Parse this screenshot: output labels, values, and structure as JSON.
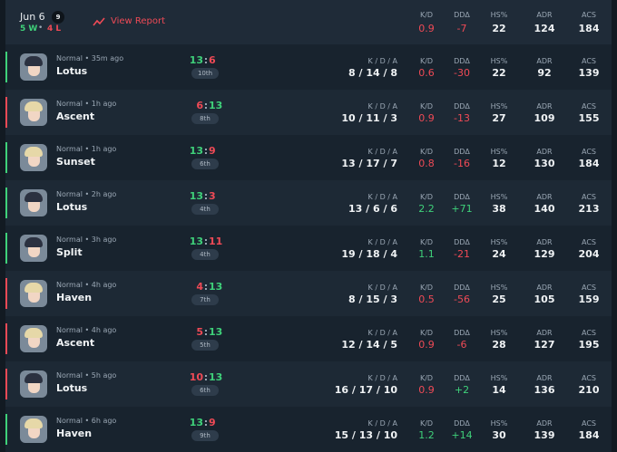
{
  "header": {
    "date": "Jun 6",
    "count": "9",
    "wins": "5 W",
    "losses": "4 L",
    "report": "View Report",
    "stats": {
      "kd": "0.9",
      "dd": "-7",
      "hs": "22",
      "adr": "124",
      "acs": "184"
    }
  },
  "labels": {
    "kda": "K / D / A",
    "kd": "K/D",
    "dd": "DDΔ",
    "hs": "HS%",
    "adr": "ADR",
    "acs": "ACS"
  },
  "matches": [
    {
      "map": "Lotus",
      "mode": "Normal • 35m ago",
      "score": [
        "13",
        "6"
      ],
      "place": "10th",
      "kda": "8 / 14 / 8",
      "kd": "0.6",
      "dd": "-30",
      "hs": "22",
      "adr": "92",
      "acs": "139",
      "avatar_color": "#2b3140"
    },
    {
      "map": "Ascent",
      "mode": "Normal • 1h ago",
      "score": [
        "6",
        "13"
      ],
      "place": "8th",
      "kda": "10 / 11 / 3",
      "kd": "0.9",
      "dd": "-13",
      "hs": "27",
      "adr": "109",
      "acs": "155",
      "avatar_color": "#e6d8a8"
    },
    {
      "map": "Sunset",
      "mode": "Normal • 1h ago",
      "score": [
        "13",
        "9"
      ],
      "place": "6th",
      "kda": "13 / 17 / 7",
      "kd": "0.8",
      "dd": "-16",
      "hs": "12",
      "adr": "130",
      "acs": "184",
      "avatar_color": "#e6d8a8"
    },
    {
      "map": "Lotus",
      "mode": "Normal • 2h ago",
      "score": [
        "13",
        "3"
      ],
      "place": "4th",
      "kda": "13 / 6 / 6",
      "kd": "2.2",
      "dd": "+71",
      "hs": "38",
      "adr": "140",
      "acs": "213",
      "avatar_color": "#2b3140"
    },
    {
      "map": "Split",
      "mode": "Normal • 3h ago",
      "score": [
        "13",
        "11"
      ],
      "place": "4th",
      "kda": "19 / 18 / 4",
      "kd": "1.1",
      "dd": "-21",
      "hs": "24",
      "adr": "129",
      "acs": "204",
      "avatar_color": "#2b3140"
    },
    {
      "map": "Haven",
      "mode": "Normal • 4h ago",
      "score": [
        "4",
        "13"
      ],
      "place": "7th",
      "kda": "8 / 15 / 3",
      "kd": "0.5",
      "dd": "-56",
      "hs": "25",
      "adr": "105",
      "acs": "159",
      "avatar_color": "#e6d8a8"
    },
    {
      "map": "Ascent",
      "mode": "Normal • 4h ago",
      "score": [
        "5",
        "13"
      ],
      "place": "5th",
      "kda": "12 / 14 / 5",
      "kd": "0.9",
      "dd": "-6",
      "hs": "28",
      "adr": "127",
      "acs": "195",
      "avatar_color": "#e6d8a8"
    },
    {
      "map": "Lotus",
      "mode": "Normal • 5h ago",
      "score": [
        "10",
        "13"
      ],
      "place": "6th",
      "kda": "16 / 17 / 10",
      "kd": "0.9",
      "dd": "+2",
      "hs": "14",
      "adr": "136",
      "acs": "210",
      "avatar_color": "#2b3140"
    },
    {
      "map": "Haven",
      "mode": "Normal • 6h ago",
      "score": [
        "13",
        "9"
      ],
      "place": "9th",
      "kda": "15 / 13 / 10",
      "kd": "1.2",
      "dd": "+14",
      "hs": "30",
      "adr": "139",
      "acs": "184",
      "avatar_color": "#e6d8a8"
    }
  ]
}
